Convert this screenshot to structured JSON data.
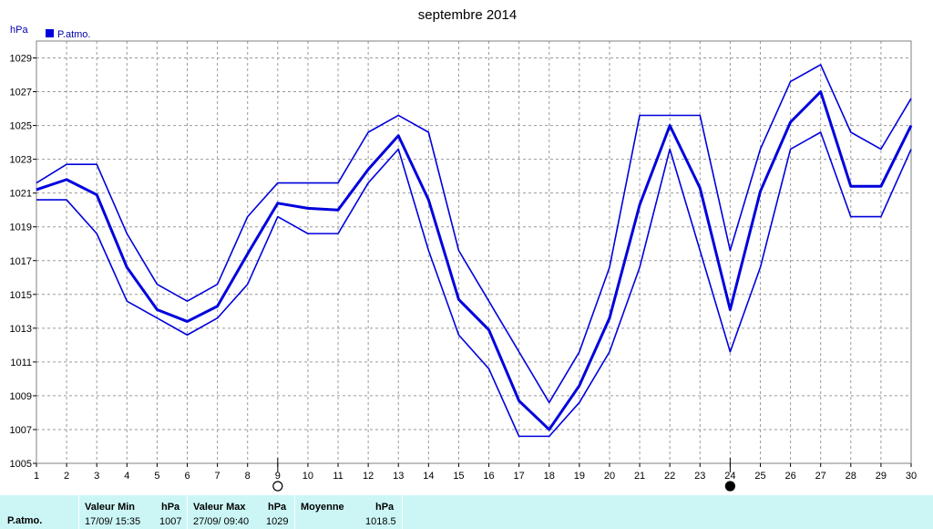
{
  "chart_data": {
    "type": "line",
    "title": "septembre 2014",
    "ylabel": "hPa",
    "xlabel": "",
    "legend": [
      {
        "name": "P.atmo.",
        "color": "#0000dd"
      }
    ],
    "legend_position": "top-left",
    "x": [
      1,
      2,
      3,
      4,
      5,
      6,
      7,
      8,
      9,
      10,
      11,
      12,
      13,
      14,
      15,
      16,
      17,
      18,
      19,
      20,
      21,
      22,
      23,
      24,
      25,
      26,
      27,
      28,
      29,
      30
    ],
    "xlim": [
      1,
      30
    ],
    "ylim": [
      1005,
      1030
    ],
    "yticks": [
      1005,
      1007,
      1009,
      1011,
      1013,
      1015,
      1017,
      1019,
      1021,
      1023,
      1025,
      1027,
      1029
    ],
    "grid": true,
    "series": [
      {
        "name": "P.atmo.",
        "role": "max",
        "values": [
          1021.6,
          1022.7,
          1022.7,
          1018.6,
          1015.6,
          1014.6,
          1015.6,
          1019.6,
          1021.6,
          1021.6,
          1021.6,
          1024.6,
          1025.6,
          1024.6,
          1017.6,
          1014.6,
          1011.6,
          1008.6,
          1011.6,
          1016.6,
          1025.6,
          1025.6,
          1025.6,
          1017.6,
          1023.6,
          1027.6,
          1028.6,
          1024.6,
          1023.6,
          1026.6
        ]
      },
      {
        "name": "P.atmo.",
        "role": "mean",
        "values": [
          1021.2,
          1021.8,
          1020.9,
          1016.6,
          1014.1,
          1013.4,
          1014.3,
          1017.4,
          1020.4,
          1020.1,
          1020.0,
          1022.4,
          1024.4,
          1020.6,
          1014.7,
          1012.9,
          1008.7,
          1007.0,
          1009.6,
          1013.6,
          1020.3,
          1025.0,
          1021.3,
          1014.1,
          1021.1,
          1025.2,
          1027.0,
          1021.4,
          1021.4,
          1025.0
        ]
      },
      {
        "name": "P.atmo.",
        "role": "min",
        "values": [
          1020.6,
          1020.6,
          1018.6,
          1014.6,
          1013.6,
          1012.6,
          1013.6,
          1015.6,
          1019.6,
          1018.6,
          1018.6,
          1021.6,
          1023.6,
          1017.6,
          1012.6,
          1010.6,
          1006.6,
          1006.6,
          1008.6,
          1011.6,
          1016.6,
          1023.6,
          1017.6,
          1011.6,
          1016.6,
          1023.6,
          1024.6,
          1019.6,
          1019.6,
          1023.6
        ]
      }
    ],
    "moon_markers": [
      {
        "day": 9,
        "symbol": "full-moon-open-circle"
      },
      {
        "day": 24,
        "symbol": "new-moon-filled-circle"
      }
    ],
    "line_color": "#0000dd"
  },
  "stats": {
    "row_label": "P.atmo.",
    "min_header": "Valeur Min",
    "min_unit": "hPa",
    "min_date": "17/09/  15:35",
    "min_value": "1007",
    "max_header": "Valeur Max",
    "max_unit": "hPa",
    "max_date": "27/09/  09:40",
    "max_value": "1029",
    "avg_header": "Moyenne",
    "avg_unit": "hPa",
    "avg_value": "1018.5"
  }
}
